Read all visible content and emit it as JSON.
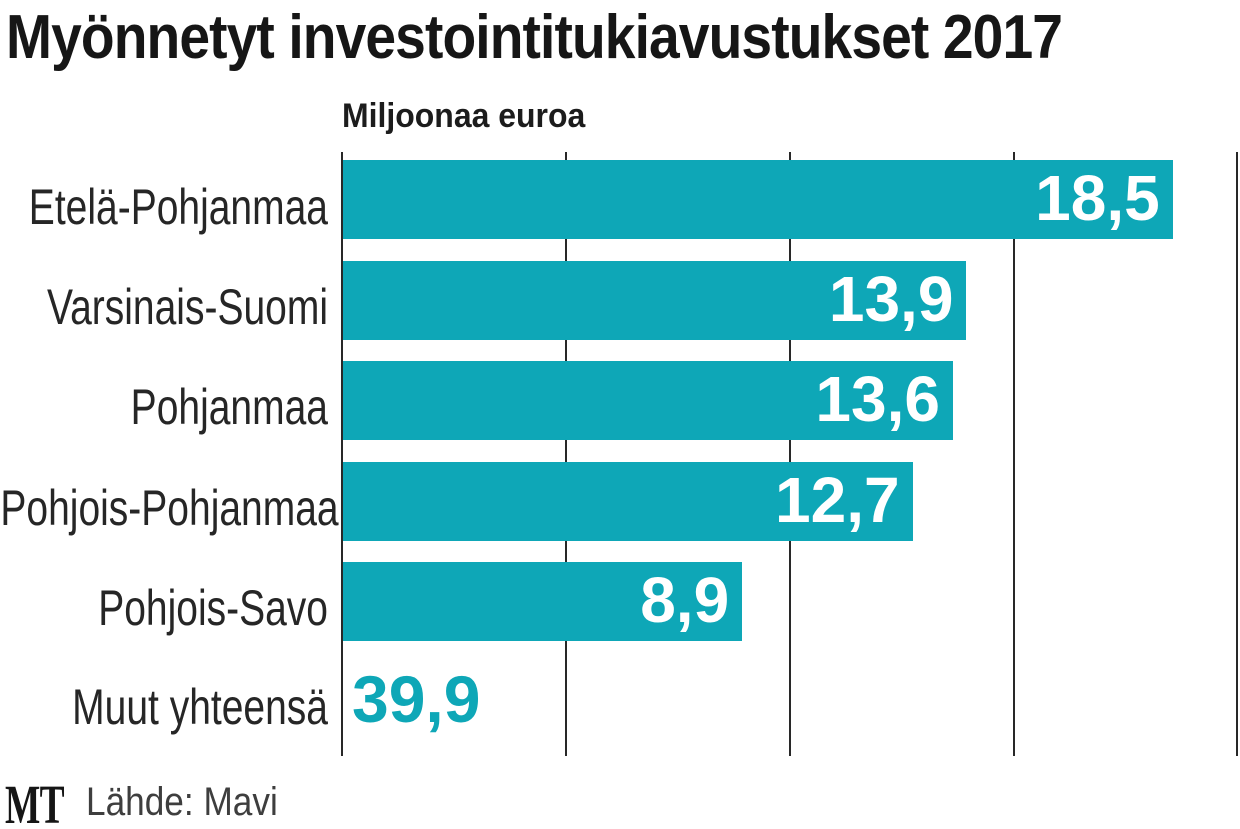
{
  "title": "Myönnetyt investointitukiavustukset 2017",
  "chart_data": {
    "type": "bar",
    "orientation": "horizontal",
    "title": "Myönnetyt investointitukiavustukset 2017",
    "value_axis_label": "Miljoonaa euroa",
    "categories": [
      "Etelä-Pohjanmaa",
      "Varsinais-Suomi",
      "Pohjanmaa",
      "Pohjois-Pohjanmaa",
      "Pohjois-Savo",
      "Muut yhteensä"
    ],
    "values": [
      18.5,
      13.9,
      13.6,
      12.7,
      8.9,
      39.9
    ],
    "value_labels": [
      "18,5",
      "13,9",
      "13,6",
      "12,7",
      "8,9",
      "39,9"
    ],
    "axis": {
      "min": 0,
      "max": 20,
      "gridline_step": 5,
      "gridlines_visible": true
    },
    "bar_color": "#0ea7b7",
    "bar_value_text_color": "#ffffff",
    "last_row_style": "value shown as colored number, no bar (exceeds axis range)"
  },
  "footer": {
    "logo_text": "MT",
    "source_label": "Lähde: Mavi"
  }
}
